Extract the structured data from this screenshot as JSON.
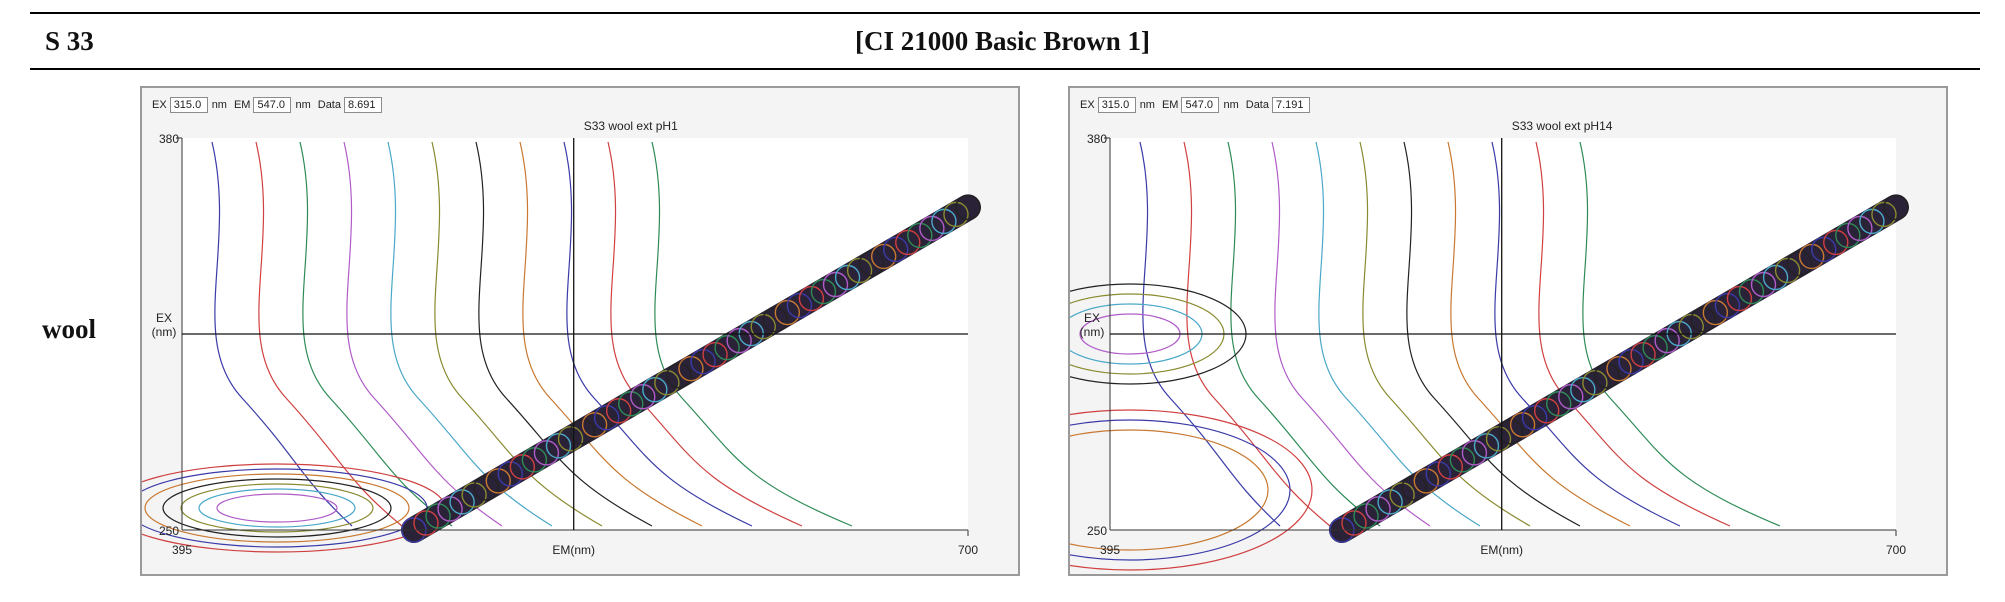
{
  "header": {
    "id": "S 33",
    "title": "[CI 21000 Basic Brown 1]"
  },
  "row_label": "wool",
  "chart_data": [
    {
      "type": "contour",
      "title": "S33 wool ext pH1",
      "toolbar": {
        "ex_label": "EX",
        "ex_value": "315.0",
        "ex_unit": "nm",
        "em_label": "EM",
        "em_value": "547.0",
        "em_unit": "nm",
        "data_label": "Data",
        "data_value": "8.691"
      },
      "xlabel": "EM(nm)",
      "ylabel": "EX\n(nm)",
      "xlim": [
        395,
        700
      ],
      "ylim": [
        250,
        380
      ],
      "x_ticks": [
        "395",
        "700"
      ],
      "y_ticks": [
        "250",
        "380"
      ],
      "crosshair": {
        "em": 547,
        "ex": 315
      },
      "scatter_band": {
        "start": [
          485,
          250
        ],
        "end": [
          700,
          357
        ]
      },
      "contour_colors": [
        "#3a3aa8",
        "#d04040",
        "#2e8b57",
        "#b05cc8",
        "#4aa8c8",
        "#8a8a30",
        "#222222",
        "#c87830"
      ]
    },
    {
      "type": "contour",
      "title": "S33 wool ext pH14",
      "toolbar": {
        "ex_label": "EX",
        "ex_value": "315.0",
        "ex_unit": "nm",
        "em_label": "EM",
        "em_value": "547.0",
        "em_unit": "nm",
        "data_label": "Data",
        "data_value": "7.191"
      },
      "xlabel": "EM(nm)",
      "ylabel": "EX\n(nm)",
      "xlim": [
        395,
        700
      ],
      "ylim": [
        250,
        380
      ],
      "x_ticks": [
        "395",
        "700"
      ],
      "y_ticks": [
        "250",
        "380"
      ],
      "crosshair": {
        "em": 547,
        "ex": 315
      },
      "scatter_band": {
        "start": [
          485,
          250
        ],
        "end": [
          700,
          357
        ]
      },
      "contour_colors": [
        "#3a3aa8",
        "#d04040",
        "#2e8b57",
        "#b05cc8",
        "#4aa8c8",
        "#8a8a30",
        "#222222",
        "#c87830"
      ]
    }
  ]
}
